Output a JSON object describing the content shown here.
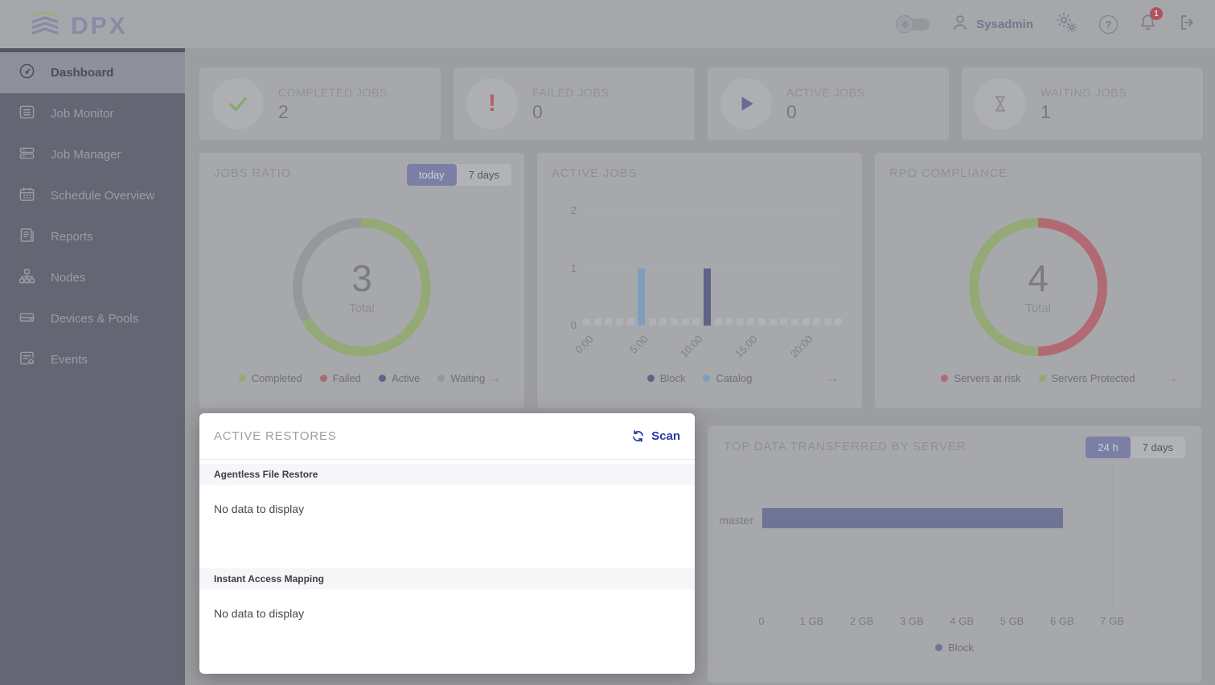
{
  "header": {
    "logo_text": "DPX",
    "user_name": "Sysadmin",
    "notification_count": "1"
  },
  "sidebar": {
    "items": [
      {
        "label": "Dashboard",
        "icon": "dashboard-gauge-icon",
        "active": true
      },
      {
        "label": "Job Monitor",
        "icon": "job-monitor-icon",
        "active": false
      },
      {
        "label": "Job Manager",
        "icon": "job-manager-icon",
        "active": false
      },
      {
        "label": "Schedule Overview",
        "icon": "calendar-icon",
        "active": false
      },
      {
        "label": "Reports",
        "icon": "reports-icon",
        "active": false
      },
      {
        "label": "Nodes",
        "icon": "nodes-icon",
        "active": false
      },
      {
        "label": "Devices & Pools",
        "icon": "devices-icon",
        "active": false
      },
      {
        "label": "Events",
        "icon": "events-icon",
        "active": false
      }
    ]
  },
  "stat_cards": [
    {
      "label": "COMPLETED JOBS",
      "value": "2",
      "icon": "check-icon",
      "color": "#83a968"
    },
    {
      "label": "FAILED JOBS",
      "value": "0",
      "icon": "exclamation-icon",
      "color": "#b2616c"
    },
    {
      "label": "ACTIVE JOBS",
      "value": "0",
      "icon": "play-icon",
      "color": "#666a94"
    },
    {
      "label": "WAITING JOBS",
      "value": "1",
      "icon": "hourglass-icon",
      "color": "#8e8f99"
    }
  ],
  "jobs_ratio": {
    "title": "JOBS RATIO",
    "toggle": {
      "active": "today",
      "inactive": "7 days"
    },
    "total_value": "3",
    "total_label": "Total"
  },
  "active_jobs_card": {
    "title": "ACTIVE JOBS"
  },
  "rpo": {
    "title": "RPO COMPLIANCE",
    "total_value": "4",
    "total_label": "Total"
  },
  "top_data": {
    "title": "TOP DATA TRANSFERRED BY SERVER",
    "toggle": {
      "active": "24 h",
      "inactive": "7 days"
    }
  },
  "modal": {
    "title": "ACTIVE RESTORES",
    "scan_label": "Scan",
    "sections": [
      {
        "title": "Agentless File Restore",
        "empty_text": "No data to display"
      },
      {
        "title": "Instant Access Mapping",
        "empty_text": "No data to display"
      }
    ]
  },
  "chart_data": [
    {
      "id": "jobs_ratio",
      "type": "pie",
      "donut": true,
      "title": "JOBS RATIO",
      "period_selected": "today",
      "center_value": 3,
      "center_label": "Total",
      "slices": [
        {
          "label": "Completed",
          "value": 2,
          "color": "#93aa76"
        },
        {
          "label": "Failed",
          "value": 0,
          "color": "#ad6a72"
        },
        {
          "label": "Active",
          "value": 0,
          "color": "#5f6387"
        },
        {
          "label": "Waiting",
          "value": 1,
          "color": "#97989c"
        }
      ],
      "legend_position": "bottom"
    },
    {
      "id": "active_jobs",
      "type": "bar",
      "title": "ACTIVE JOBS",
      "x_unit": "hour of day",
      "hours_span": 24,
      "ylim": [
        0,
        2
      ],
      "yticks": [
        0,
        1,
        2
      ],
      "xticks": [
        {
          "label": "0:00",
          "hour": 0
        },
        {
          "label": "5:00",
          "hour": 5
        },
        {
          "label": "10:00",
          "hour": 10
        },
        {
          "label": "15:00",
          "hour": 15
        },
        {
          "label": "20:00",
          "hour": 20
        }
      ],
      "series": [
        {
          "name": "Block",
          "color": "#5f6387",
          "points": [
            {
              "hour": 11,
              "value": 1
            }
          ]
        },
        {
          "name": "Catalog",
          "color": "#7f9dbe",
          "points": [
            {
              "hour": 5,
              "value": 1
            }
          ]
        }
      ],
      "legend_position": "bottom"
    },
    {
      "id": "rpo",
      "type": "pie",
      "donut": true,
      "title": "RPO COMPLIANCE",
      "center_value": 4,
      "center_label": "Total",
      "slices": [
        {
          "label": "Servers at risk",
          "value": 2,
          "color": "#b16a73"
        },
        {
          "label": "Servers Protected",
          "value": 2,
          "color": "#93aa76"
        }
      ],
      "legend_position": "bottom"
    },
    {
      "id": "top_data",
      "type": "bar",
      "orientation": "horizontal",
      "title": "TOP DATA TRANSFERRED BY SERVER",
      "period_selected": "24 h",
      "categories": [
        "master"
      ],
      "series": [
        {
          "name": "Block",
          "color": "#6f7394",
          "values_gb": [
            6
          ]
        }
      ],
      "xlim_gb": [
        0,
        7
      ],
      "xticks": [
        "0",
        "1 GB",
        "2 GB",
        "3 GB",
        "4 GB",
        "5 GB",
        "6 GB",
        "7 GB"
      ],
      "legend_position": "bottom"
    }
  ]
}
